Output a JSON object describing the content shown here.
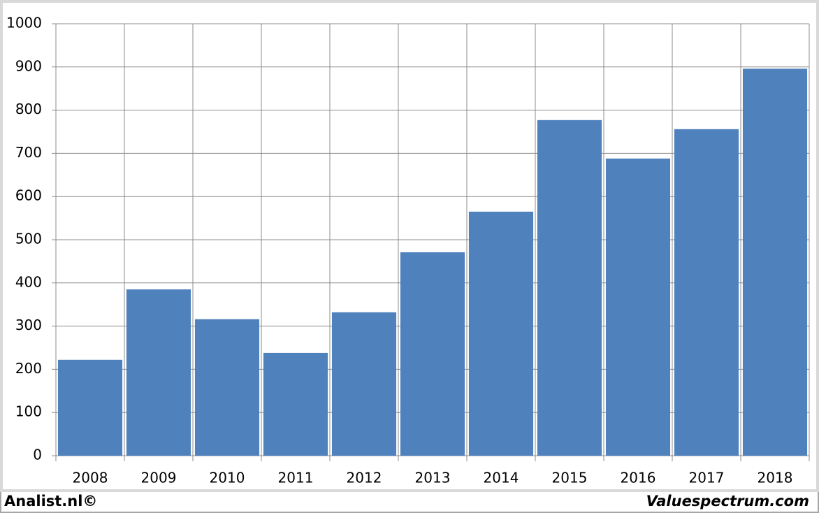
{
  "chart_data": {
    "type": "bar",
    "categories": [
      "2008",
      "2009",
      "2010",
      "2011",
      "2012",
      "2013",
      "2014",
      "2015",
      "2016",
      "2017",
      "2018"
    ],
    "values": [
      222,
      385,
      316,
      238,
      332,
      471,
      565,
      777,
      688,
      756,
      896
    ],
    "color": "#4f81bd",
    "ylim": [
      0,
      1000
    ],
    "yticks": [
      0,
      100,
      200,
      300,
      400,
      500,
      600,
      700,
      800,
      900,
      1000
    ],
    "grid": true,
    "source_left": "Analist.nl©",
    "source_right": "Valuespectrum.com"
  }
}
